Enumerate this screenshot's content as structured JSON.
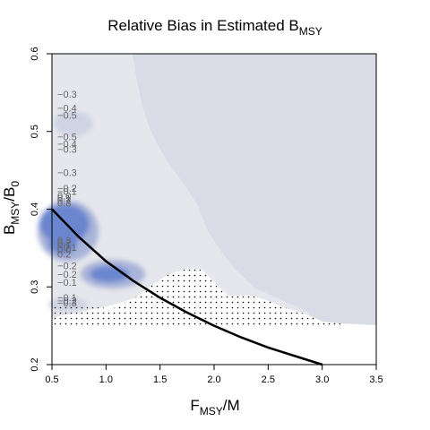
{
  "chart_data": {
    "type": "heatmap",
    "title": "Relative Bias in Estimated B",
    "title_subscript": "MSY",
    "xlabel": "F",
    "xlabel_subscript": "MSY",
    "xlabel_suffix": "/M",
    "ylabel": "B",
    "ylabel_subscript": "MSY",
    "ylabel_suffix": "/B",
    "ylabel_suffix_subscript": "0",
    "xlim": [
      0.5,
      3.5
    ],
    "ylim": [
      0.2,
      0.6
    ],
    "x_ticks": [
      0.5,
      1.0,
      1.5,
      2.0,
      2.5,
      3.0,
      3.5
    ],
    "x_tick_labels": [
      "0.5",
      "1.0",
      "1.5",
      "2.0",
      "2.5",
      "3.0",
      "3.5"
    ],
    "y_ticks": [
      0.2,
      0.3,
      0.4,
      0.5,
      0.6
    ],
    "y_tick_labels": [
      "0.2",
      "0.3",
      "0.4",
      "0.5",
      "0.6"
    ],
    "colors": {
      "background_fill": "#d9dbe6",
      "light_region": "#e6e7ec",
      "mid_blue": "#a9b4d9",
      "strong_blue": "#6b86cf",
      "curve": "#000000",
      "contour_text": "#666666"
    },
    "curve": {
      "x": [
        0.5,
        0.75,
        1.0,
        1.25,
        1.5,
        1.75,
        2.0,
        2.25,
        2.5,
        2.75,
        3.0
      ],
      "y": [
        0.4,
        0.364,
        0.333,
        0.308,
        0.286,
        0.267,
        0.25,
        0.235,
        0.222,
        0.211,
        0.2
      ]
    },
    "contour_labels": [
      {
        "text": "−0.3",
        "x": 0.55,
        "y": 0.547
      },
      {
        "text": "−0.4",
        "x": 0.55,
        "y": 0.529
      },
      {
        "text": "−0.5",
        "x": 0.55,
        "y": 0.52
      },
      {
        "text": "−0.5",
        "x": 0.55,
        "y": 0.492
      },
      {
        "text": "−0.4",
        "x": 0.55,
        "y": 0.483
      },
      {
        "text": "−0.3",
        "x": 0.55,
        "y": 0.476
      },
      {
        "text": "−0.3",
        "x": 0.55,
        "y": 0.446
      },
      {
        "text": "−0.2",
        "x": 0.55,
        "y": 0.426
      },
      {
        "text": "−0.1",
        "x": 0.55,
        "y": 0.422
      },
      {
        "text": "0.0",
        "x": 0.55,
        "y": 0.416
      },
      {
        "text": "0.1",
        "x": 0.55,
        "y": 0.413
      },
      {
        "text": "0.2",
        "x": 0.55,
        "y": 0.41
      },
      {
        "text": "0.3",
        "x": 0.55,
        "y": 0.407
      },
      {
        "text": "0.3",
        "x": 0.55,
        "y": 0.359
      },
      {
        "text": "0.2",
        "x": 0.55,
        "y": 0.356
      },
      {
        "text": "0.1",
        "x": 0.55,
        "y": 0.353
      },
      {
        "text": "−0.1",
        "x": 0.55,
        "y": 0.35
      },
      {
        "text": "0.0",
        "x": 0.55,
        "y": 0.347
      },
      {
        "text": "0.2",
        "x": 0.55,
        "y": 0.341
      },
      {
        "text": "−0.2",
        "x": 0.55,
        "y": 0.326
      },
      {
        "text": "−0.2",
        "x": 0.55,
        "y": 0.315
      },
      {
        "text": "−0.1",
        "x": 0.55,
        "y": 0.305
      },
      {
        "text": "−0.1",
        "x": 0.55,
        "y": 0.285
      },
      {
        "text": "−0.2",
        "x": 0.55,
        "y": 0.281
      },
      {
        "text": "−0.3",
        "x": 0.55,
        "y": 0.278
      }
    ]
  }
}
